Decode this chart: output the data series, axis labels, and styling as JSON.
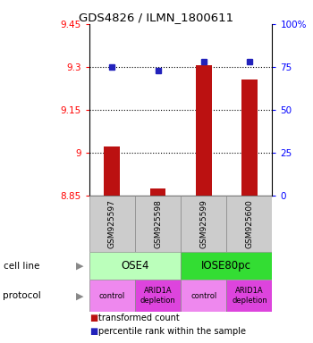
{
  "title": "GDS4826 / ILMN_1800611",
  "samples": [
    "GSM925597",
    "GSM925598",
    "GSM925599",
    "GSM925600"
  ],
  "bar_values": [
    9.02,
    8.875,
    9.305,
    9.255
  ],
  "dot_values": [
    75,
    73,
    78,
    78
  ],
  "ylim_left": [
    8.85,
    9.45
  ],
  "ylim_right": [
    0,
    100
  ],
  "yticks_left": [
    8.85,
    9.0,
    9.15,
    9.3,
    9.45
  ],
  "yticks_right": [
    0,
    25,
    50,
    75,
    100
  ],
  "ytick_labels_left": [
    "8.85",
    "9",
    "9.15",
    "9.3",
    "9.45"
  ],
  "ytick_labels_right": [
    "0",
    "25",
    "50",
    "75",
    "100%"
  ],
  "hlines": [
    9.0,
    9.15,
    9.3
  ],
  "bar_color": "#bb1111",
  "dot_color": "#2222bb",
  "cell_line_colors": [
    "#bbffbb",
    "#33dd33"
  ],
  "cell_lines": [
    "OSE4",
    "IOSE80pc"
  ],
  "cell_line_spans": [
    [
      0,
      2
    ],
    [
      2,
      4
    ]
  ],
  "protocol_colors_light": "#ee88ee",
  "protocol_colors_dark": "#dd44dd",
  "protocols": [
    "control",
    "ARID1A\ndepletion",
    "control",
    "ARID1A\ndepletion"
  ],
  "sample_box_color": "#cccccc",
  "legend_red": "transformed count",
  "legend_blue": "percentile rank within the sample"
}
